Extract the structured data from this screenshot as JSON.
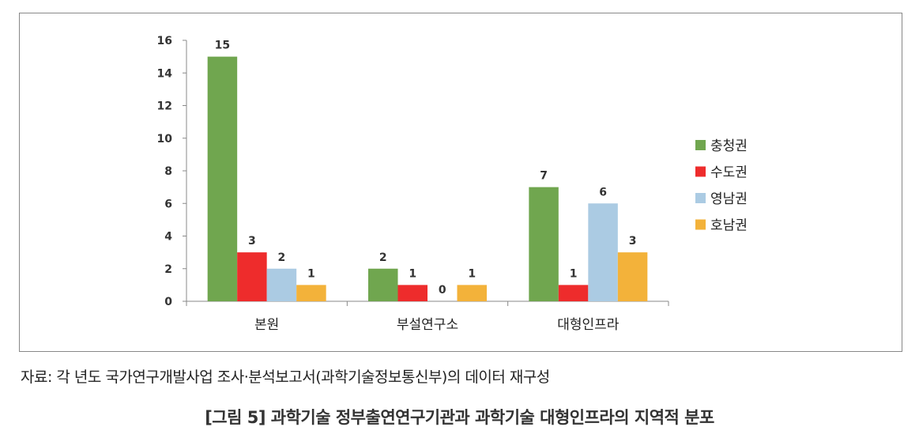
{
  "chart_data": {
    "type": "bar",
    "categories": [
      "본원",
      "부설연구소",
      "대형인프라"
    ],
    "series": [
      {
        "name": "충청권",
        "color": "#70a64f",
        "values": [
          15,
          2,
          7
        ]
      },
      {
        "name": "수도권",
        "color": "#ee2c2c",
        "values": [
          3,
          1,
          1
        ]
      },
      {
        "name": "영남권",
        "color": "#abcbe3",
        "values": [
          2,
          0,
          6
        ]
      },
      {
        "name": "호남권",
        "color": "#f3b23a",
        "values": [
          1,
          1,
          3
        ]
      }
    ],
    "ylim": [
      0,
      16
    ],
    "yticks": [
      0,
      2,
      4,
      6,
      8,
      10,
      12,
      14,
      16
    ],
    "legend": "right",
    "grid": false
  },
  "source": "자료: 각 년도 국가연구개발사업 조사·분석보고서(과학기술정보통신부)의 데이터 재구성",
  "caption": "[그림 5] 과학기술 정부출연연구기관과 과학기술 대형인프라의 지역적 분포"
}
